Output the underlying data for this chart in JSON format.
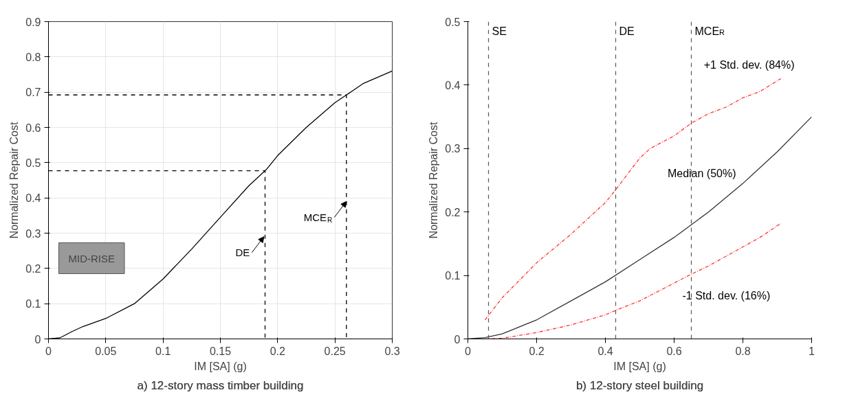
{
  "chart_data": [
    {
      "type": "line",
      "title": "a) 12-story mass timber building",
      "xlabel": "IM [SA] (g)",
      "ylabel": "Normalized Repair Cost",
      "xlim": [
        0,
        0.3
      ],
      "ylim": [
        0,
        0.9
      ],
      "xticks": [
        0,
        0.05,
        0.1,
        0.15,
        0.2,
        0.25,
        0.3
      ],
      "yticks": [
        0,
        0.1,
        0.2,
        0.3,
        0.4,
        0.5,
        0.6,
        0.7,
        0.8,
        0.9
      ],
      "grid": true,
      "series": [
        {
          "color": "#000000",
          "x": [
            0,
            0.01,
            0.02,
            0.03,
            0.05,
            0.075,
            0.1,
            0.125,
            0.15,
            0.175,
            0.19,
            0.2,
            0.225,
            0.25,
            0.26,
            0.275,
            0.3
          ],
          "values": [
            0,
            0.003,
            0.02,
            0.035,
            0.058,
            0.1,
            0.17,
            0.255,
            0.345,
            0.435,
            0.48,
            0.52,
            0.6,
            0.67,
            0.692,
            0.725,
            0.76
          ]
        },
        {
          "color": "#000000",
          "line_style": "dashed",
          "x": [
            0,
            0.189,
            0.189
          ],
          "values": [
            0.477,
            0.477,
            0
          ]
        },
        {
          "color": "#000000",
          "line_style": "dashed",
          "x": [
            0,
            0.26,
            0.26
          ],
          "values": [
            0.692,
            0.692,
            0
          ]
        }
      ],
      "annotations": [
        {
          "text": "DE",
          "x": 0.188,
          "y": 0.29
        },
        {
          "text": "MCE$_{R}$",
          "x": 0.26,
          "y": 0.39
        },
        "MID-RISE"
      ]
    },
    {
      "type": "line",
      "title": "b) 12-story steel building",
      "xlabel": "IM [SA] (g)",
      "ylabel": "Normalized Repair Cost",
      "xlim": [
        0,
        1
      ],
      "ylim": [
        0,
        0.5
      ],
      "xticks": [
        0,
        0.2,
        0.4,
        0.6,
        0.8,
        1
      ],
      "yticks": [
        0,
        0.1,
        0.2,
        0.3,
        0.4,
        0.5
      ],
      "grid": false,
      "ref_lines": [
        {
          "axis": "x",
          "value": 0.06,
          "label": "SE",
          "color": "#555555",
          "line_style": "dashed"
        },
        {
          "axis": "x",
          "value": 0.43,
          "label": "DE",
          "color": "#555555",
          "line_style": "dashed"
        },
        {
          "axis": "x",
          "value": 0.65,
          "label": "MCE$_{R}$",
          "color": "#555555",
          "line_style": "dashed"
        }
      ],
      "series": [
        {
          "name": "+1 Std. dev. (84%)",
          "color": "#ff3333",
          "line_style": "dashdot",
          "x": [
            0.05,
            0.1,
            0.2,
            0.3,
            0.4,
            0.43,
            0.5,
            0.53,
            0.6,
            0.65,
            0.7,
            0.75,
            0.8,
            0.85,
            0.91
          ],
          "values": [
            0.03,
            0.065,
            0.12,
            0.165,
            0.215,
            0.235,
            0.285,
            0.3,
            0.32,
            0.34,
            0.355,
            0.365,
            0.38,
            0.39,
            0.41
          ]
        },
        {
          "name": "Median (50%)",
          "color": "#333333",
          "x": [
            0,
            0.05,
            0.1,
            0.2,
            0.3,
            0.4,
            0.5,
            0.6,
            0.65,
            0.7,
            0.8,
            0.9,
            1.0
          ],
          "values": [
            0,
            0.002,
            0.008,
            0.03,
            0.06,
            0.09,
            0.125,
            0.16,
            0.18,
            0.2,
            0.245,
            0.295,
            0.35
          ]
        },
        {
          "name": "-1 Std. dev. (16%)",
          "color": "#ff3333",
          "line_style": "dashdot",
          "x": [
            0.05,
            0.1,
            0.2,
            0.3,
            0.4,
            0.43,
            0.5,
            0.6,
            0.65,
            0.7,
            0.8,
            0.85,
            0.91
          ],
          "values": [
            0,
            0.001,
            0.01,
            0.022,
            0.038,
            0.045,
            0.06,
            0.088,
            0.102,
            0.115,
            0.145,
            0.16,
            0.182
          ]
        }
      ]
    }
  ]
}
